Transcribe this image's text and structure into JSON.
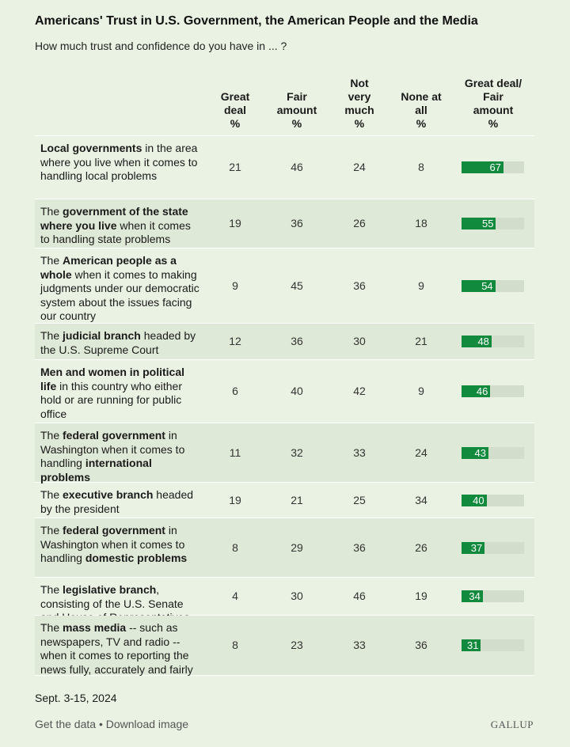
{
  "title": "Americans' Trust in U.S. Government, the American People and the Media",
  "subtitle": "How much trust and confidence do you have in ... ?",
  "colors": {
    "bar": "#128a3e",
    "track": "#d3ddcc",
    "background": "#eaf2e3",
    "alt_row": "#dfe9d7"
  },
  "chart_data": {
    "type": "table",
    "columns": [
      "Great\ndeal\n%",
      "Fair\namount\n%",
      "Not\nvery\nmuch\n%",
      "None at\nall\n%",
      "Great deal/\nFair\namount\n%"
    ],
    "rows": [
      {
        "label_parts": [
          {
            "t": "Local governments",
            "b": true
          },
          {
            "t": " in the area where you live when it comes to handling local problems",
            "b": false
          }
        ],
        "values": [
          21,
          46,
          24,
          8
        ],
        "combined": 67
      },
      {
        "label_parts": [
          {
            "t": "The ",
            "b": false
          },
          {
            "t": "government of the state where you live",
            "b": true
          },
          {
            "t": " when it comes to handling state problems",
            "b": false
          }
        ],
        "values": [
          19,
          36,
          26,
          18
        ],
        "combined": 55
      },
      {
        "label_parts": [
          {
            "t": "The ",
            "b": false
          },
          {
            "t": "American people as a whole",
            "b": true
          },
          {
            "t": " when it comes to making judgments under our democratic system about the issues facing our country",
            "b": false
          }
        ],
        "values": [
          9,
          45,
          36,
          9
        ],
        "combined": 54
      },
      {
        "label_parts": [
          {
            "t": "The ",
            "b": false
          },
          {
            "t": "judicial branch",
            "b": true
          },
          {
            "t": " headed by the U.S. Supreme Court",
            "b": false
          }
        ],
        "values": [
          12,
          36,
          30,
          21
        ],
        "combined": 48
      },
      {
        "label_parts": [
          {
            "t": "Men and women in political life",
            "b": true
          },
          {
            "t": " in this country who either hold or are running for public office",
            "b": false
          }
        ],
        "values": [
          6,
          40,
          42,
          9
        ],
        "combined": 46
      },
      {
        "label_parts": [
          {
            "t": "The ",
            "b": false
          },
          {
            "t": "federal government",
            "b": true
          },
          {
            "t": " in Washington when it comes to handling ",
            "b": false
          },
          {
            "t": "international problems",
            "b": true
          }
        ],
        "values": [
          11,
          32,
          33,
          24
        ],
        "combined": 43
      },
      {
        "label_parts": [
          {
            "t": "The ",
            "b": false
          },
          {
            "t": "executive branch",
            "b": true
          },
          {
            "t": " headed by the president",
            "b": false
          }
        ],
        "values": [
          19,
          21,
          25,
          34
        ],
        "combined": 40
      },
      {
        "label_parts": [
          {
            "t": "The ",
            "b": false
          },
          {
            "t": "federal government",
            "b": true
          },
          {
            "t": " in Washington when it comes to handling ",
            "b": false
          },
          {
            "t": "domestic problems",
            "b": true
          }
        ],
        "values": [
          8,
          29,
          36,
          26
        ],
        "combined": 37
      },
      {
        "label_parts": [
          {
            "t": "The ",
            "b": false
          },
          {
            "t": "legislative branch",
            "b": true
          },
          {
            "t": ", consisting of the U.S. Senate and House of Representatives",
            "b": false
          }
        ],
        "values": [
          4,
          30,
          46,
          19
        ],
        "combined": 34
      },
      {
        "label_parts": [
          {
            "t": "The ",
            "b": false
          },
          {
            "t": "mass media",
            "b": true
          },
          {
            "t": " -- such as newspapers, TV and radio -- when it comes to reporting the news fully, accurately and fairly",
            "b": false
          }
        ],
        "values": [
          8,
          23,
          33,
          36
        ],
        "combined": 31
      }
    ],
    "bar_max": 100
  },
  "footer": {
    "date": "Sept. 3-15, 2024",
    "get_data": "Get the data",
    "separator": " • ",
    "download": "Download image",
    "brand": "GALLUP"
  }
}
